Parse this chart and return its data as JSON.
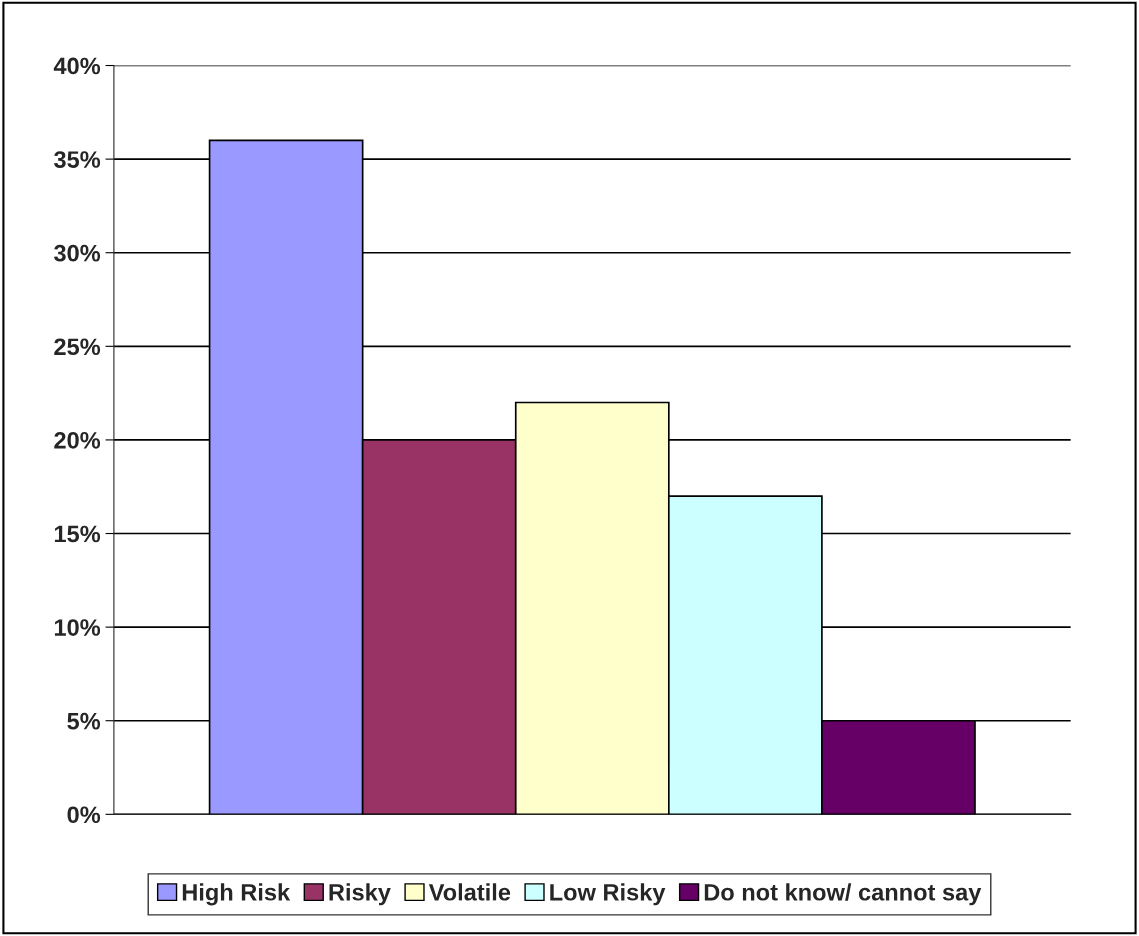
{
  "chart_data": {
    "type": "bar",
    "categories": [
      null
    ],
    "series": [
      {
        "name": "High Risk",
        "color": "#9999ff",
        "values": [
          36
        ]
      },
      {
        "name": "Risky",
        "color": "#993366",
        "values": [
          20
        ]
      },
      {
        "name": "Volatile",
        "color": "#ffffcc",
        "values": [
          22
        ]
      },
      {
        "name": "Low Risky",
        "color": "#ccffff",
        "values": [
          17
        ]
      },
      {
        "name": "Do not know/ cannot say",
        "color": "#660066",
        "values": [
          5
        ]
      }
    ],
    "ylim": [
      0,
      40
    ],
    "yticks": [
      {
        "value": 0,
        "label": "0%"
      },
      {
        "value": 5,
        "label": "5%"
      },
      {
        "value": 10,
        "label": "10%"
      },
      {
        "value": 15,
        "label": "15%"
      },
      {
        "value": 20,
        "label": "20%"
      },
      {
        "value": 25,
        "label": "25%"
      },
      {
        "value": 30,
        "label": "30%"
      },
      {
        "value": 35,
        "label": "35%"
      },
      {
        "value": 40,
        "label": "40%"
      }
    ],
    "grid": "y",
    "legend": "bottom"
  }
}
